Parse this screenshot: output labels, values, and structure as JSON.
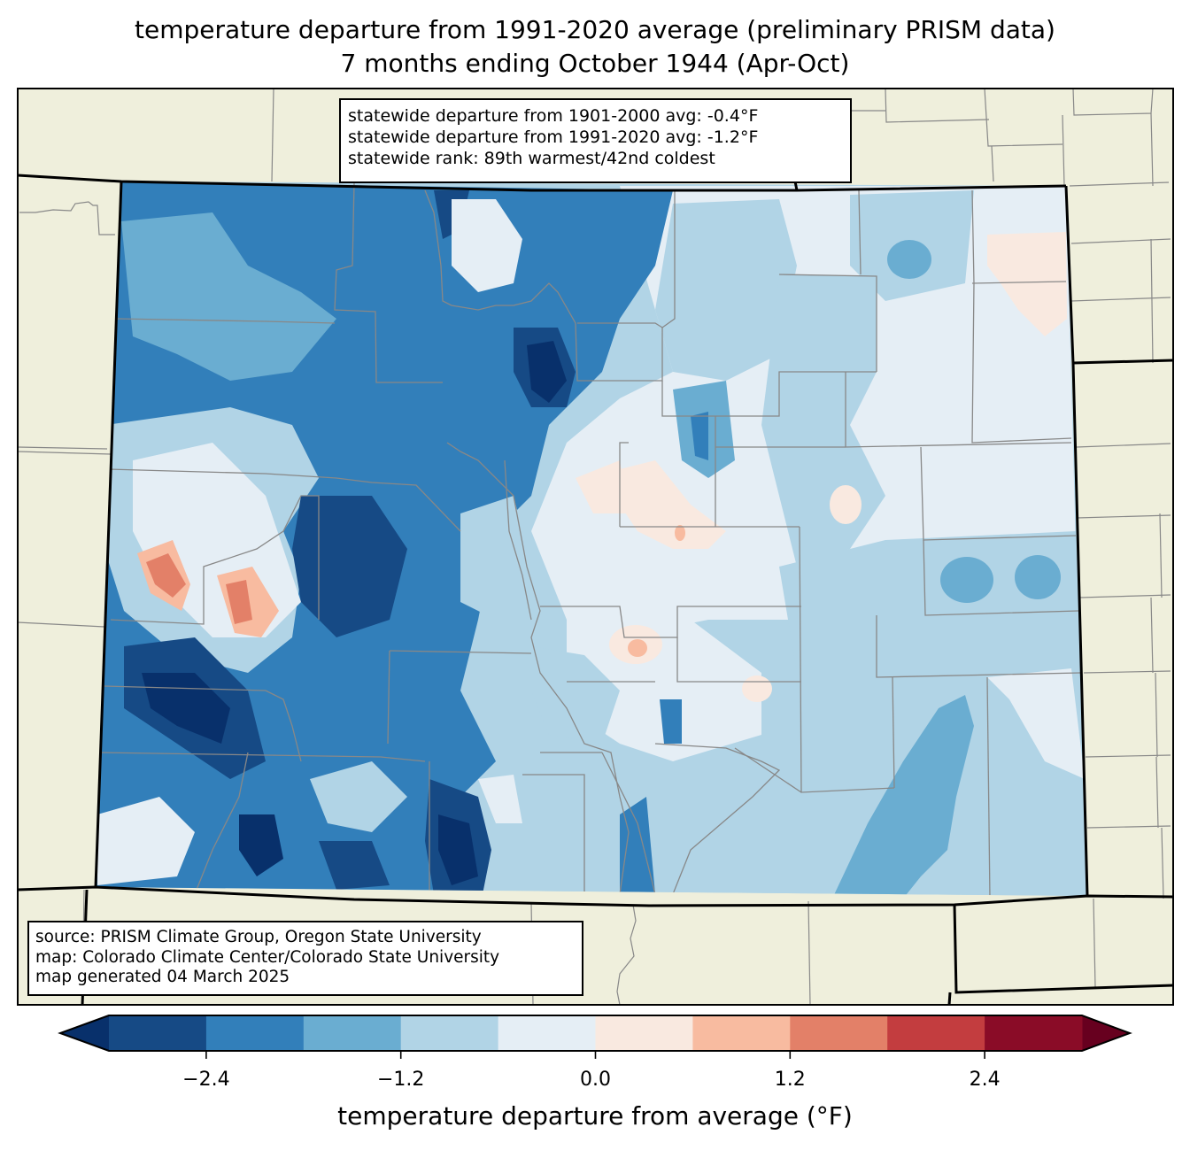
{
  "title": {
    "line1": "temperature departure from 1991-2020 average (preliminary PRISM data)",
    "line2": "7 months ending October 1944 (Apr-Oct)"
  },
  "stats": {
    "line1": "statewide departure from 1901-2000 avg: -0.4°F",
    "line2": "statewide departure from 1991-2020 avg: -1.2°F",
    "line3": "statewide rank: 89th warmest/42nd coldest"
  },
  "credits": {
    "source": "source: PRISM Climate Group, Oregon State University",
    "map": "map: Colorado Climate Center/Colorado State University",
    "generated": "map generated 04 March 2025"
  },
  "colorbar": {
    "label": "temperature departure from average (°F)",
    "ticks": [
      "−2.4",
      "−1.2",
      "0.0",
      "1.2",
      "2.4"
    ],
    "tick_values": [
      -2.4,
      -1.2,
      0.0,
      1.2,
      2.4
    ],
    "range": [
      -3.0,
      3.0
    ],
    "levels": [
      -3.0,
      -2.4,
      -1.8,
      -1.2,
      -0.6,
      0.0,
      0.6,
      1.2,
      1.8,
      2.4,
      3.0
    ],
    "under_color": "#08306b",
    "over_color": "#67001f",
    "colors": [
      "#164a85",
      "#327fba",
      "#6aadd1",
      "#b1d4e6",
      "#e5eef5",
      "#f9e9e0",
      "#f8bba0",
      "#e38068",
      "#c33d3f",
      "#8a0c27"
    ]
  },
  "colors": {
    "background_land": "#efefdc",
    "county_line": "#888888",
    "state_line": "#000000",
    "base_fill": "#b1d4e6"
  }
}
